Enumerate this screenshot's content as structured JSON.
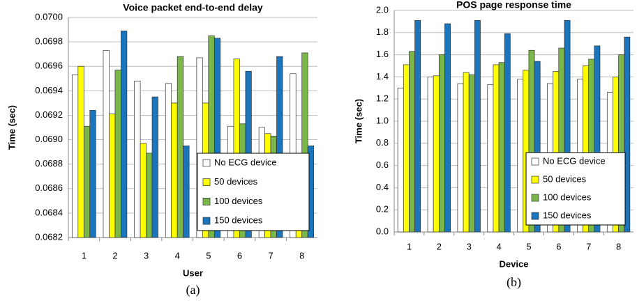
{
  "chart_data": [
    {
      "type": "bar",
      "title": "Voice packet end-to-end delay",
      "x_label": "User",
      "y_label": "Time (sec)",
      "caption": "(a)",
      "categories": [
        "1",
        "2",
        "3",
        "4",
        "5",
        "6",
        "7",
        "8"
      ],
      "series": [
        {
          "name": "No ECG device",
          "color": "#ffffff",
          "values": [
            0.06953,
            0.06973,
            0.06948,
            0.06946,
            0.06967,
            0.06911,
            0.0691,
            0.06954
          ]
        },
        {
          "name": "50 devices",
          "color": "#ffff00",
          "values": [
            0.0696,
            0.06921,
            0.06897,
            0.0693,
            0.0693,
            0.06966,
            0.06905,
            0.06889
          ]
        },
        {
          "name": "100 devices",
          "color": "#7ab648",
          "values": [
            0.06911,
            0.06957,
            0.06889,
            0.06968,
            0.06985,
            0.06913,
            0.06903,
            0.06971
          ]
        },
        {
          "name": "150 devices",
          "color": "#1b75bc",
          "values": [
            0.06924,
            0.06989,
            0.06935,
            0.06895,
            0.06983,
            0.06956,
            0.06968,
            0.06895
          ]
        }
      ],
      "ylim": [
        0.0682,
        0.07
      ],
      "yticks": [
        0.0682,
        0.0684,
        0.0686,
        0.0688,
        {
          "value": 0.069,
          "label": "0.0690"
        },
        0.0692,
        0.0694,
        0.0696,
        0.0698,
        {
          "value": 0.07,
          "label": "0.0700"
        }
      ],
      "grid": true,
      "legend": "lower right"
    },
    {
      "type": "bar",
      "title": "POS page response time",
      "x_label": "Device",
      "y_label": "Time (sec)",
      "caption": "(b)",
      "categories": [
        "1",
        "2",
        "3",
        "4",
        "5",
        "6",
        "7",
        "8"
      ],
      "series": [
        {
          "name": "No ECG device",
          "color": "#ffffff",
          "values": [
            1.3,
            1.4,
            1.34,
            1.33,
            1.38,
            1.34,
            1.38,
            1.26
          ]
        },
        {
          "name": "50 devices",
          "color": "#ffff00",
          "values": [
            1.51,
            1.41,
            1.44,
            1.51,
            1.46,
            1.45,
            1.5,
            1.4
          ]
        },
        {
          "name": "100 devices",
          "color": "#7ab648",
          "values": [
            1.63,
            1.6,
            1.42,
            1.53,
            1.64,
            1.66,
            1.56,
            1.6
          ]
        },
        {
          "name": "150 devices",
          "color": "#1b75bc",
          "values": [
            1.91,
            1.88,
            1.91,
            1.79,
            1.54,
            1.91,
            1.68,
            1.76
          ]
        }
      ],
      "ylim": [
        0,
        2
      ],
      "yticks": [
        {
          "value": 0,
          "label": "0.0"
        },
        0.2,
        0.4,
        0.6,
        0.8,
        {
          "value": 1,
          "label": "1.0"
        },
        1.2,
        1.4,
        1.6,
        1.8,
        {
          "value": 2,
          "label": "2.0"
        }
      ],
      "grid": true,
      "legend": "lower right"
    }
  ]
}
